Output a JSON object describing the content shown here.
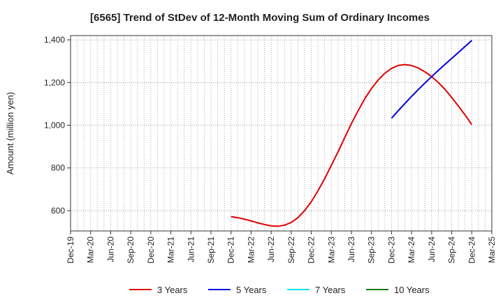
{
  "chart_data": {
    "type": "line",
    "title": "[6565]  Trend of StDev of 12-Month Moving Sum of Ordinary Incomes",
    "xlabel": "",
    "ylabel": "Amount (million yen)",
    "ylim": [
      505,
      1420
    ],
    "y_ticks": [
      600,
      800,
      1000,
      1200,
      1400
    ],
    "y_tick_labels": [
      "600",
      "800",
      "1,000",
      "1,200",
      "1,400"
    ],
    "x_ticks": [
      "Dec-19",
      "Mar-20",
      "Jun-20",
      "Sep-20",
      "Dec-20",
      "Mar-21",
      "Jun-21",
      "Sep-21",
      "Dec-21",
      "Mar-22",
      "Jun-22",
      "Sep-22",
      "Dec-22",
      "Mar-23",
      "Jun-23",
      "Sep-23",
      "Dec-23",
      "Mar-24",
      "Jun-24",
      "Sep-24",
      "Dec-24",
      "Mar-25"
    ],
    "grid": true,
    "legend_position": "bottom",
    "series": [
      {
        "name": "3 Years",
        "color": "#e00000",
        "x": [
          "Dec-21",
          "Jan-22",
          "Feb-22",
          "Mar-22",
          "Apr-22",
          "May-22",
          "Jun-22",
          "Jul-22",
          "Aug-22",
          "Sep-22",
          "Oct-22",
          "Nov-22",
          "Dec-22",
          "Jan-23",
          "Feb-23",
          "Mar-23",
          "Apr-23",
          "May-23",
          "Jun-23",
          "Jul-23",
          "Aug-23",
          "Sep-23",
          "Oct-23",
          "Nov-23",
          "Dec-23",
          "Jan-24",
          "Feb-24",
          "Mar-24",
          "Apr-24",
          "May-24",
          "Jun-24",
          "Jul-24",
          "Aug-24",
          "Sep-24",
          "Oct-24",
          "Nov-24",
          "Dec-24"
        ],
        "values": [
          572,
          567,
          560,
          552,
          543,
          535,
          529,
          527,
          532,
          545,
          567,
          600,
          642,
          693,
          750,
          812,
          876,
          942,
          1008,
          1068,
          1124,
          1172,
          1212,
          1244,
          1266,
          1280,
          1284,
          1280,
          1268,
          1250,
          1228,
          1200,
          1168,
          1130,
          1090,
          1048,
          1003
        ]
      },
      {
        "name": "5 Years",
        "color": "#0000dd",
        "x": [
          "Dec-23",
          "Jan-24",
          "Feb-24",
          "Mar-24",
          "Apr-24",
          "May-24",
          "Jun-24",
          "Jul-24",
          "Aug-24",
          "Sep-24",
          "Oct-24",
          "Nov-24",
          "Dec-24"
        ],
        "values": [
          1033,
          1068,
          1102,
          1135,
          1167,
          1198,
          1228,
          1257,
          1285,
          1313,
          1341,
          1369,
          1397
        ]
      },
      {
        "name": "7 Years",
        "color": "#00e5ee",
        "x": [],
        "values": []
      },
      {
        "name": "10 Years",
        "color": "#1a7a1a",
        "x": [],
        "values": []
      }
    ]
  }
}
